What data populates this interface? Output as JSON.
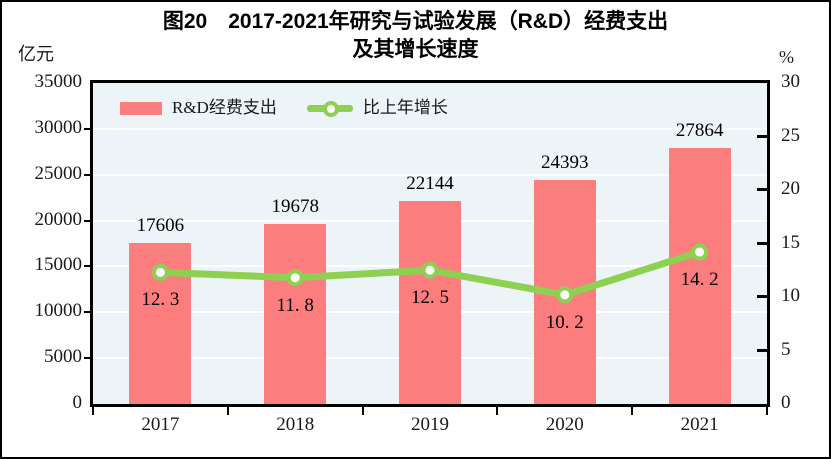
{
  "title": {
    "line1": "图20　2017-2021年研究与试验发展（R&D）经费支出",
    "line2": "及其增长速度"
  },
  "chart_data": {
    "type": "bar",
    "title": "图20 2017-2021年研究与试验发展（R&D）经费支出及其增长速度",
    "categories": [
      "2017",
      "2018",
      "2019",
      "2020",
      "2021"
    ],
    "series": [
      {
        "name": "R&D经费支出",
        "type": "bar",
        "axis": "left",
        "color": "#fb7d7e",
        "values": [
          17606,
          19678,
          22144,
          24393,
          27864
        ],
        "labels": [
          "17606",
          "19678",
          "22144",
          "24393",
          "27864"
        ]
      },
      {
        "name": "比上年增长",
        "type": "line",
        "axis": "right",
        "color": "#8ed052",
        "marker_fill": "#ffffff",
        "values": [
          12.3,
          11.8,
          12.5,
          10.2,
          14.2
        ],
        "labels": [
          "12. 3",
          "11. 8",
          "12. 5",
          "10. 2",
          "14. 2"
        ]
      }
    ],
    "left_axis": {
      "label": "亿元",
      "min": 0,
      "max": 35000,
      "step": 5000
    },
    "right_axis": {
      "label": "%",
      "min": 0,
      "max": 30,
      "step": 5
    },
    "grid": true,
    "grid_color": "#ffffff",
    "plot_bg": "#ecf4f7",
    "legend_position": "top-inside"
  }
}
